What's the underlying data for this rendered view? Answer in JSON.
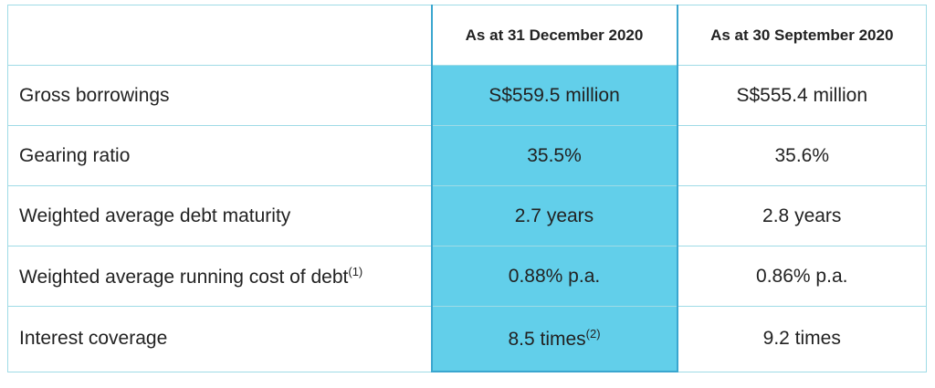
{
  "table": {
    "columns": [
      "As at 31 December 2020",
      "As at 30 September 2020"
    ],
    "rows": [
      {
        "label": "Gross borrowings",
        "cells": [
          "S$559.5 million",
          "S$555.4 million"
        ]
      },
      {
        "label": "Gearing ratio",
        "cells": [
          "35.5%",
          "35.6%"
        ]
      },
      {
        "label": "Weighted average debt maturity",
        "cells": [
          "2.7 years",
          "2.8 years"
        ]
      },
      {
        "label": {
          "text": "Weighted average running cost of debt",
          "sup": "(1)"
        },
        "cells": [
          "0.88% p.a.",
          "0.86% p.a."
        ]
      },
      {
        "label": "Interest coverage",
        "cells": [
          {
            "text": "8.5 times",
            "sup": "(2)"
          },
          "9.2 times"
        ]
      }
    ]
  }
}
